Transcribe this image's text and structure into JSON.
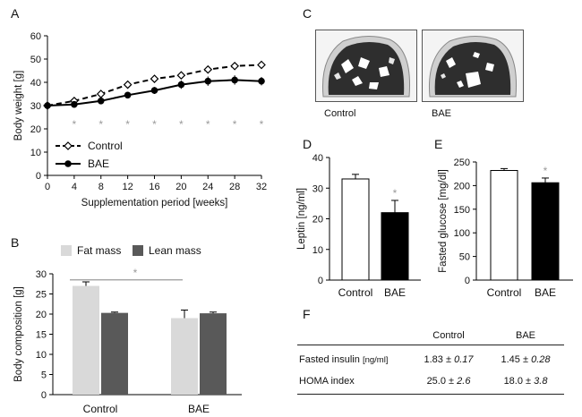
{
  "panel_letters": {
    "a": "A",
    "b": "B",
    "c": "C",
    "d": "D",
    "e": "E",
    "f": "F"
  },
  "colors": {
    "control_line": "#000000",
    "bae_line": "#000000",
    "fat": "#d9d9d9",
    "lean": "#595959",
    "control_bar": "#ffffff",
    "bae_bar": "#000000",
    "significance": "#9a9a9a"
  },
  "chart_data": [
    {
      "id": "A",
      "type": "line",
      "title": "",
      "xlabel": "Supplementation period [weeks]",
      "ylabel": "Body weight [g]",
      "x": [
        0,
        4,
        8,
        12,
        16,
        20,
        24,
        28,
        32
      ],
      "xlim": [
        0,
        32
      ],
      "ylim": [
        0,
        60
      ],
      "yticks": [
        0,
        10,
        20,
        30,
        40,
        50,
        60
      ],
      "series": [
        {
          "name": "Control",
          "values": [
            30,
            32,
            35,
            39,
            41.5,
            43,
            45.5,
            47,
            47.5
          ],
          "err": [
            0.5,
            0.6,
            0.7,
            0.8,
            0.8,
            0.9,
            0.9,
            1.0,
            1.0
          ],
          "style": "dashed",
          "marker": "open-diamond"
        },
        {
          "name": "BAE",
          "values": [
            30,
            30.5,
            32,
            34.5,
            36.5,
            39,
            40.5,
            41,
            40.5
          ],
          "err": [
            0.5,
            0.8,
            1.0,
            1.2,
            1.5,
            1.8,
            2.0,
            2.0,
            1.8
          ],
          "style": "solid",
          "marker": "filled-circle"
        }
      ],
      "significance": [
        4,
        8,
        12,
        16,
        20,
        24,
        28,
        32
      ],
      "significance_symbol": "*",
      "legend": [
        "Control",
        "BAE"
      ]
    },
    {
      "id": "B",
      "type": "bar",
      "ylabel": "Body composition [g]",
      "categories": [
        "Control",
        "BAE"
      ],
      "ylim": [
        0,
        30
      ],
      "yticks": [
        0,
        5,
        10,
        15,
        20,
        25,
        30
      ],
      "series": [
        {
          "name": "Fat mass",
          "values": [
            27,
            19
          ],
          "err": [
            1.0,
            2.0
          ]
        },
        {
          "name": "Lean mass",
          "values": [
            20.3,
            20.2
          ],
          "err": [
            0.2,
            0.3
          ]
        }
      ],
      "significance": "*",
      "legend": [
        "Fat mass",
        "Lean mass"
      ]
    },
    {
      "id": "D",
      "type": "bar",
      "ylabel": "Leptin [ng/ml]",
      "categories": [
        "Control",
        "BAE"
      ],
      "ylim": [
        0,
        40
      ],
      "yticks": [
        0,
        10,
        20,
        30,
        40
      ],
      "values": [
        33,
        22
      ],
      "err": [
        1.5,
        4.0
      ],
      "significance": "*"
    },
    {
      "id": "E",
      "type": "bar",
      "ylabel": "Fasted glucose [mg/dl]",
      "categories": [
        "Control",
        "BAE"
      ],
      "ylim": [
        0,
        250
      ],
      "yticks": [
        0,
        50,
        100,
        150,
        200,
        250
      ],
      "values": [
        232,
        206
      ],
      "err": [
        4,
        10
      ],
      "significance": "*"
    }
  ],
  "panel_c": {
    "labels": [
      "Control",
      "BAE"
    ]
  },
  "table_f": {
    "headers": [
      "",
      "Control",
      "BAE"
    ],
    "rows": [
      {
        "label": "Fasted insulin",
        "unit": "[ng/ml]",
        "control_mean": "1.83",
        "control_sd": "± 0.17",
        "bae_mean": "1.45",
        "bae_sd": "± 0.28"
      },
      {
        "label": "HOMA index",
        "unit": "",
        "control_mean": "25.0",
        "control_sd": "± 2.6",
        "bae_mean": "18.0",
        "bae_sd": "± 3.8"
      }
    ]
  }
}
